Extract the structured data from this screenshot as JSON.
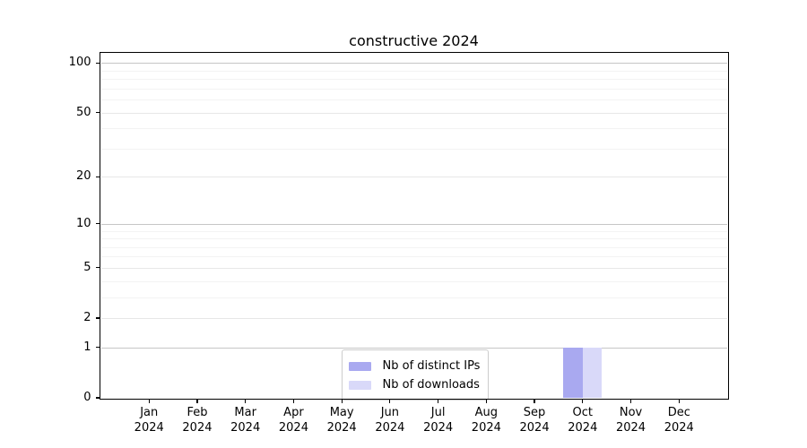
{
  "chart_data": {
    "type": "bar",
    "title": "constructive 2024",
    "categories": [
      "Jan",
      "Feb",
      "Mar",
      "Apr",
      "May",
      "Jun",
      "Jul",
      "Aug",
      "Sep",
      "Oct",
      "Nov",
      "Dec"
    ],
    "x_tick_year": "2024",
    "series": [
      {
        "name": "Nb of distinct IPs",
        "color": "#a9a9f0",
        "values": [
          0,
          0,
          0,
          0,
          0,
          0,
          0,
          0,
          0,
          1,
          0,
          0
        ]
      },
      {
        "name": "Nb of downloads",
        "color": "#d9d9f9",
        "values": [
          0,
          0,
          0,
          0,
          0,
          0,
          0,
          0,
          0,
          1,
          0,
          0
        ]
      }
    ],
    "y_axis": {
      "scale": "log1p",
      "major_ticks": [
        0,
        1,
        2,
        5,
        10,
        20,
        50,
        100
      ],
      "minor_ticks": [
        3,
        4,
        6,
        7,
        8,
        9,
        30,
        40,
        60,
        70,
        80,
        90
      ],
      "ylim": [
        0,
        115
      ]
    },
    "legend": {
      "position": "lower-center",
      "entries": [
        "Nb of distinct IPs",
        "Nb of downloads"
      ]
    },
    "grid": "horizontal",
    "colors": {
      "decade_gridline": "#c6c6c6",
      "major_gridline": "#e7e7e7",
      "minor_gridline": "#f3f3f3",
      "axis": "#000000",
      "text": "#000000",
      "background": "#ffffff",
      "legend_border": "#cccccc"
    }
  }
}
